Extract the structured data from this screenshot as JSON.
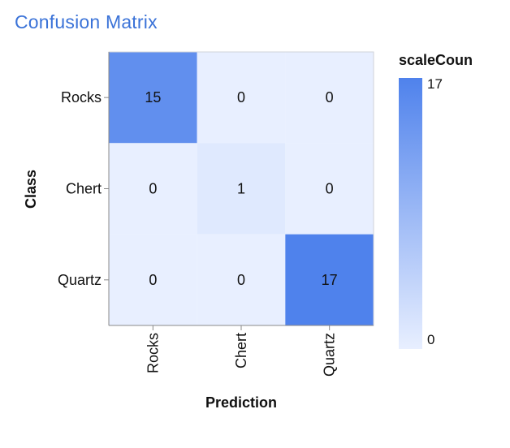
{
  "header": {
    "title": "Confusion Matrix"
  },
  "chart_data": {
    "type": "heatmap",
    "x_categories": [
      "Rocks",
      "Chert",
      "Quartz"
    ],
    "y_categories": [
      "Rocks",
      "Chert",
      "Quartz"
    ],
    "values": [
      [
        15,
        0,
        0
      ],
      [
        0,
        1,
        0
      ],
      [
        0,
        0,
        17
      ]
    ],
    "xlabel": "Prediction",
    "ylabel": "Class",
    "legend": {
      "title": "scaleCoun",
      "min": 0,
      "max": 17,
      "placement": "right"
    },
    "color_range": [
      "#e8efff",
      "#4f82ec"
    ]
  }
}
